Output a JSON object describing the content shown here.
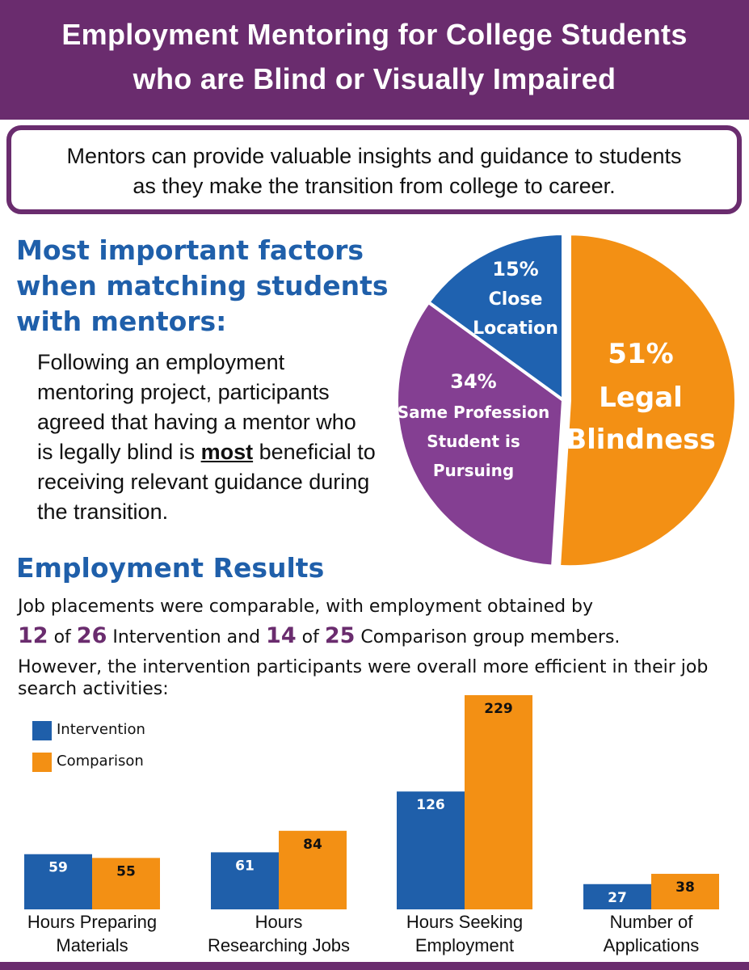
{
  "header": {
    "title": [
      "Employment Mentoring for College Students",
      "who are Blind or Visually Impaired"
    ]
  },
  "intro": [
    "Mentors can provide valuable insights and guidance to students",
    "as they make the transition from college to career."
  ],
  "factors": {
    "heading": "Most important factors when matching students with mentors:",
    "body": [
      "Following an employment mentoring project, participants agreed that having a mentor who is legally blind is ",
      "most",
      " beneficial to receiving relevant guidance during the transition."
    ]
  },
  "results": {
    "heading": "Employment Results",
    "placements": [
      "Job placements were comparable, with employment obtained by",
      12,
      "of",
      26,
      "Intervention and",
      14,
      "of",
      25,
      "Comparison group members."
    ],
    "efficiency": "However, the intervention participants were overall more efficient in their job search activities:"
  },
  "chart_data": [
    {
      "type": "pie",
      "categories": [
        "Legal Blindness",
        "Same Profession Student is Pursuing",
        "Close Location"
      ],
      "values": [
        51,
        34,
        15
      ],
      "value_labels": [
        "51%",
        "34%",
        "15%"
      ],
      "colors": [
        "#f39014",
        "#843f92",
        "#1f62b0"
      ]
    },
    {
      "type": "bar",
      "categories": [
        [
          "Hours Preparing",
          "Materials"
        ],
        [
          "Hours",
          "Researching Jobs"
        ],
        [
          "Hours Seeking",
          "Employment"
        ],
        [
          "Number of",
          "Applications"
        ]
      ],
      "series": [
        {
          "name": "Intervention",
          "color": "#1f5faa",
          "values": [
            59,
            61,
            126,
            27
          ]
        },
        {
          "name": "Comparison",
          "color": "#f39014",
          "values": [
            55,
            84,
            229,
            38
          ]
        }
      ],
      "legend": "upper left"
    }
  ]
}
